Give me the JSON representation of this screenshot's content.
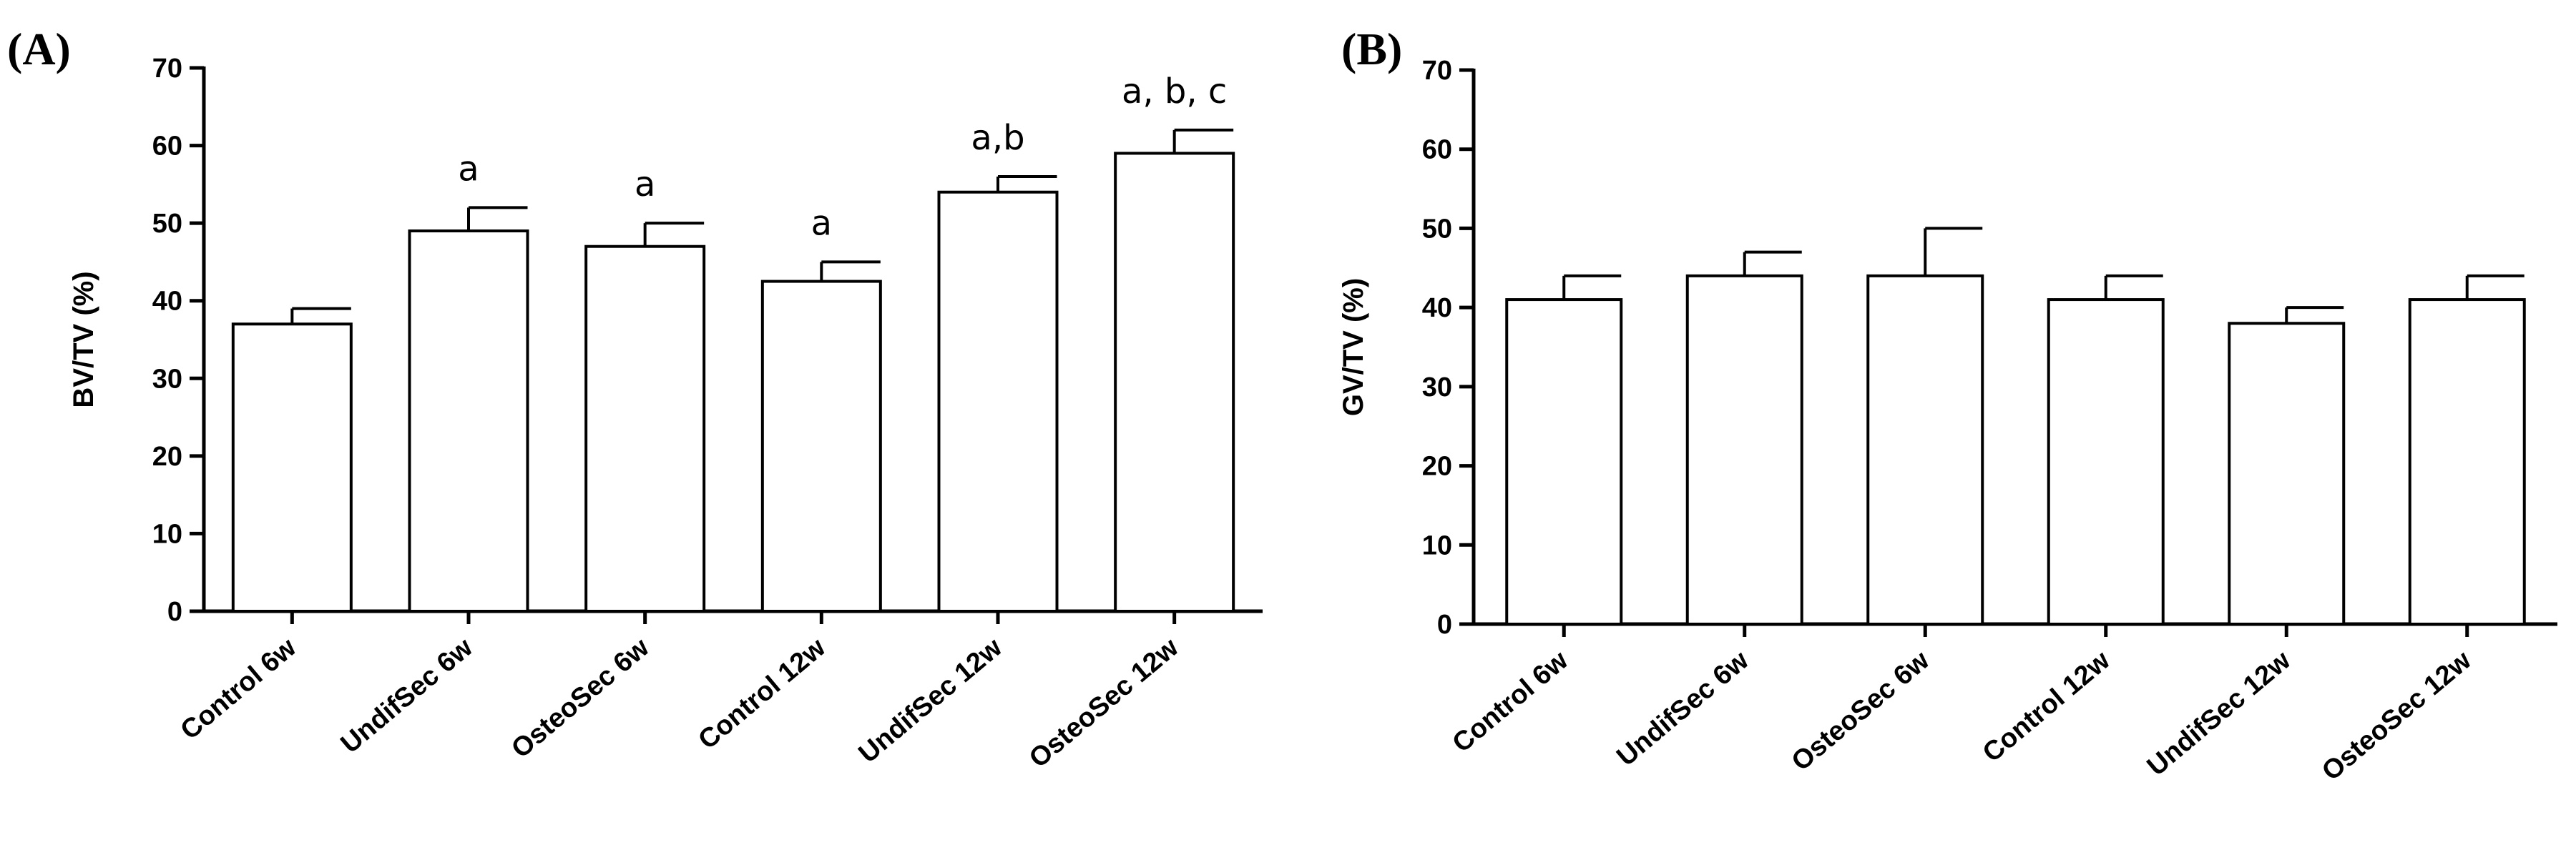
{
  "chart_data": [
    {
      "type": "bar",
      "panel_label": "(A)",
      "title": "",
      "xlabel": "",
      "ylabel": "BV/TV (%)",
      "ylim": [
        0,
        70
      ],
      "yticks": [
        0,
        10,
        20,
        30,
        40,
        50,
        60,
        70
      ],
      "categories": [
        "Control 6w",
        "UndifSec 6w",
        "OsteoSec 6w",
        "Control 12w",
        "UndifSec 12w",
        "OsteoSec 12w"
      ],
      "values": [
        37,
        49,
        47,
        42.5,
        54,
        59
      ],
      "errors": [
        2,
        3,
        3,
        2.5,
        2,
        3
      ],
      "annotations": [
        "",
        "a",
        "a",
        "a",
        "a,b",
        "a, b, c"
      ]
    },
    {
      "type": "bar",
      "panel_label": "(B)",
      "title": "",
      "xlabel": "",
      "ylabel": "GV/TV (%)",
      "ylim": [
        0,
        70
      ],
      "yticks": [
        0,
        10,
        20,
        30,
        40,
        50,
        60,
        70
      ],
      "categories": [
        "Control 6w",
        "UndifSec 6w",
        "OsteoSec 6w",
        "Control 12w",
        "UndifSec 12w",
        "OsteoSec 12w"
      ],
      "values": [
        41,
        44,
        44,
        41,
        38,
        41
      ],
      "errors": [
        3,
        3,
        6,
        3,
        2,
        3
      ],
      "annotations": [
        "",
        "",
        "",
        "",
        "",
        ""
      ]
    }
  ]
}
